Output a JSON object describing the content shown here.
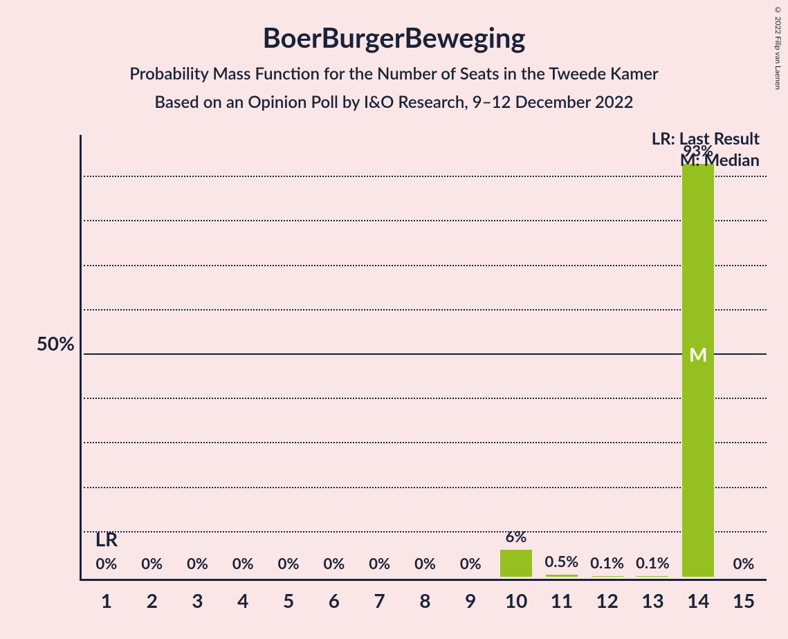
{
  "copyright": "© 2022 Filip van Laenen",
  "title": "BoerBurgerBeweging",
  "subtitle1": "Probability Mass Function for the Number of Seats in the Tweede Kamer",
  "subtitle2": "Based on an Opinion Poll by I&O Research, 9–12 December 2022",
  "y_axis": {
    "max": 100,
    "tick_step": 10,
    "labeled_tick": 50,
    "labeled_tick_text": "50%"
  },
  "legend": {
    "lr": "LR: Last Result",
    "m": "M: Median"
  },
  "colors": {
    "bar": "#94c120",
    "text": "#1a2238",
    "bar_text": "#ffffff",
    "background": "#fae6e6",
    "grid": "#1a2238"
  },
  "chart": {
    "type": "bar",
    "categories": [
      "1",
      "2",
      "3",
      "4",
      "5",
      "6",
      "7",
      "8",
      "9",
      "10",
      "11",
      "12",
      "13",
      "14",
      "15"
    ],
    "values": [
      0,
      0,
      0,
      0,
      0,
      0,
      0,
      0,
      0,
      6,
      0.5,
      0.1,
      0.1,
      93,
      0
    ],
    "value_labels": [
      "0%",
      "0%",
      "0%",
      "0%",
      "0%",
      "0%",
      "0%",
      "0%",
      "0%",
      "6%",
      "0.5%",
      "0.1%",
      "0.1%",
      "93%",
      "0%"
    ],
    "lr_index": 0,
    "lr_text": "LR",
    "median_index": 13,
    "median_text": "M"
  }
}
